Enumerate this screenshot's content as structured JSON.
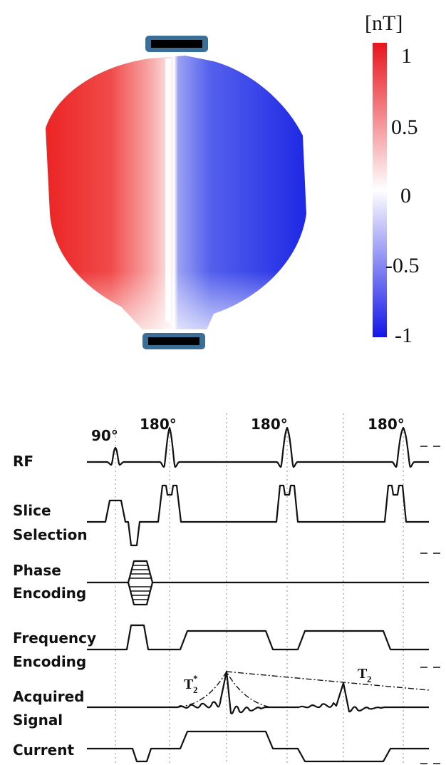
{
  "colorbar": {
    "unit": "[nT]",
    "ticks": [
      "1",
      "0.5",
      "0",
      "-0.5",
      "-1"
    ],
    "colors": {
      "max": "#e8141c",
      "mid": "#ffffff",
      "min": "#1416e8"
    }
  },
  "map_colors": {
    "left": "#ee2a2a",
    "right": "#1e2ee6",
    "electrode": "#3a6e96"
  },
  "sequence": {
    "pulses": [
      {
        "name": "flip-90",
        "angle": "90°"
      },
      {
        "name": "refocus-1",
        "angle": "180°"
      },
      {
        "name": "refocus-2",
        "angle": "180°"
      },
      {
        "name": "refocus-3",
        "angle": "180°"
      }
    ],
    "rows": [
      {
        "name": "rf",
        "label": [
          "RF"
        ]
      },
      {
        "name": "slice",
        "label": [
          "Slice",
          "Selection"
        ]
      },
      {
        "name": "phase",
        "label": [
          "Phase",
          "Encoding"
        ]
      },
      {
        "name": "frequency",
        "label": [
          "Frequency",
          "Encoding"
        ]
      },
      {
        "name": "signal",
        "label": [
          "Acquired",
          "Signal"
        ]
      },
      {
        "name": "current",
        "label": [
          "Current"
        ]
      }
    ],
    "decay": {
      "t2star": "T",
      "t2star_sub": "2",
      "t2star_sup": "*",
      "t2": "T",
      "t2_sub": "2"
    }
  }
}
